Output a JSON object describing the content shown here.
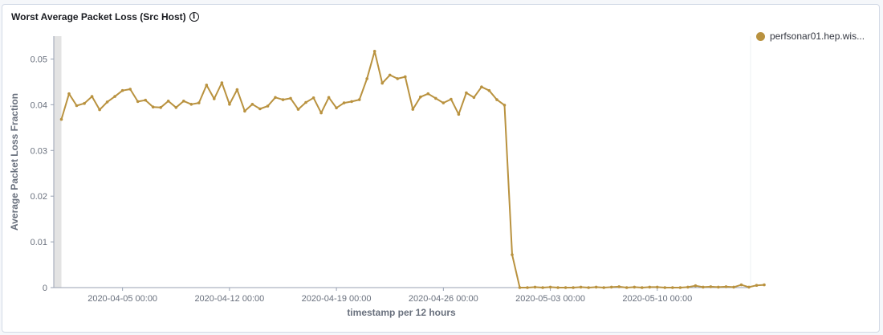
{
  "panel": {
    "title": "Worst Average Packet Loss (Src Host)",
    "info_icon": "info-icon"
  },
  "colors": {
    "series": "#b9923f",
    "axis": "#98a2b3",
    "text": "#69707d",
    "grid": "#eef0f3",
    "shade": "#e3e3e3"
  },
  "chart_data": {
    "type": "line",
    "title": "Worst Average Packet Loss (Src Host)",
    "xlabel": "timestamp per 12 hours",
    "ylabel": "Average Packet Loss Fraction",
    "ylim": [
      0,
      0.055
    ],
    "y_ticks": [
      {
        "value": 0,
        "label": "0"
      },
      {
        "value": 0.01,
        "label": "0.01"
      },
      {
        "value": 0.02,
        "label": "0.02"
      },
      {
        "value": 0.03,
        "label": "0.03"
      },
      {
        "value": 0.04,
        "label": "0.04"
      },
      {
        "value": 0.05,
        "label": "0.05"
      }
    ],
    "x_start": "2020-03-31 12:00",
    "x_end": "2020-05-16 00:00",
    "x_ticks": [
      {
        "value": "2020-04-05 00:00",
        "label": "2020-04-05 00:00"
      },
      {
        "value": "2020-04-12 00:00",
        "label": "2020-04-12 00:00"
      },
      {
        "value": "2020-04-19 00:00",
        "label": "2020-04-19 00:00"
      },
      {
        "value": "2020-04-26 00:00",
        "label": "2020-04-26 00:00"
      },
      {
        "value": "2020-05-03 00:00",
        "label": "2020-05-03 00:00"
      },
      {
        "value": "2020-05-10 00:00",
        "label": "2020-05-10 00:00"
      }
    ],
    "partial_bucket": {
      "from": "2020-03-31 12:00",
      "to": "2020-04-01 00:00"
    },
    "series": [
      {
        "name": "perfsonar01.hep.wis...",
        "x_start": "2020-04-01 00:00",
        "x_step_hours": 12,
        "values": [
          0.0368,
          0.0424,
          0.0398,
          0.0403,
          0.0418,
          0.0389,
          0.0406,
          0.0418,
          0.0431,
          0.0434,
          0.0407,
          0.041,
          0.0395,
          0.0394,
          0.0408,
          0.0394,
          0.0408,
          0.0401,
          0.0404,
          0.0443,
          0.0413,
          0.0448,
          0.0401,
          0.0433,
          0.0386,
          0.0401,
          0.0391,
          0.0397,
          0.0416,
          0.0411,
          0.0414,
          0.039,
          0.0405,
          0.0415,
          0.0382,
          0.0416,
          0.0393,
          0.0404,
          0.0407,
          0.0411,
          0.0457,
          0.0517,
          0.0447,
          0.0465,
          0.0457,
          0.0461,
          0.039,
          0.0417,
          0.0424,
          0.0414,
          0.0404,
          0.0412,
          0.0379,
          0.0426,
          0.0416,
          0.0439,
          0.0431,
          0.0411,
          0.0399,
          0.0072,
          0.0,
          0.0,
          0.0001,
          0.0,
          0.0001,
          0.0,
          0.0,
          0.0,
          0.0001,
          0.0,
          0.0001,
          0.0,
          0.0001,
          0.0002,
          0.0,
          0.0001,
          0.0,
          0.0001,
          0.0001,
          0.0,
          0.0,
          0.0,
          0.0001,
          0.0004,
          0.0001,
          0.0002,
          0.0001,
          0.0002,
          0.0001,
          0.0006,
          0.0001,
          0.0005,
          0.0006
        ]
      }
    ],
    "legend": {
      "position": "right"
    },
    "grid": false
  }
}
